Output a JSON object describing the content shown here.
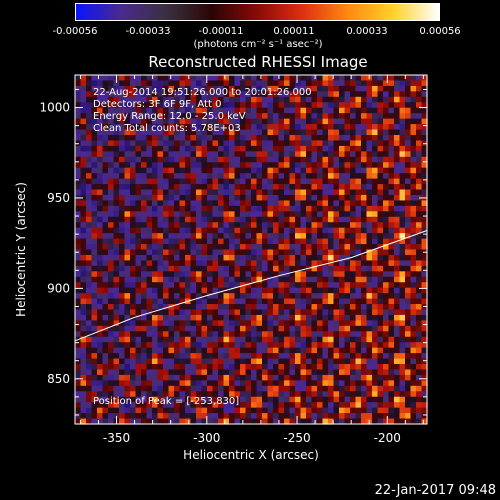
{
  "colorbar": {
    "ticks": [
      "-0.00056",
      "-0.00033",
      "-0.00011",
      "0.00011",
      "0.00033",
      "0.00056"
    ],
    "units": "(photons cm⁻² s⁻¹ asec⁻²)",
    "gradient": [
      "#0a14ff",
      "#4a2a8c",
      "#3a3040",
      "#2a0505",
      "#8a0a0a",
      "#e03010",
      "#ff8a10",
      "#ffd22a",
      "#ffffff"
    ]
  },
  "chart_data": {
    "type": "heatmap",
    "title": "Reconstructed RHESSI Image",
    "xlabel": "Heliocentric X (arcsec)",
    "ylabel": "Heliocentric Y (arcsec)",
    "xlim": [
      -373,
      -178
    ],
    "ylim": [
      825,
      1018
    ],
    "x_ticks": [
      "-350",
      "-300",
      "-250",
      "-200"
    ],
    "y_ticks": [
      "850",
      "900",
      "950",
      "1000"
    ],
    "x_tick_values": [
      -350,
      -300,
      -250,
      -200
    ],
    "y_tick_values": [
      850,
      900,
      950,
      1000
    ],
    "limb_curve": {
      "x": [
        -373,
        -340,
        -300,
        -260,
        -220,
        -178
      ],
      "y": [
        871,
        884,
        896,
        907,
        917,
        932
      ]
    },
    "annotations": {
      "time": "22-Aug-2014 19:51:26.000 to 20:01:26.000",
      "detectors": "Detectors: 3F 6F 9F, Att 0",
      "energy": "Energy Range: 12.0 - 25.0 keV",
      "clean": "Clean    Total counts: 5.78E+03",
      "peak": "Position of Peak = [-253,830]"
    }
  },
  "footer": {
    "date": "22-Jan-2017 09:48"
  }
}
